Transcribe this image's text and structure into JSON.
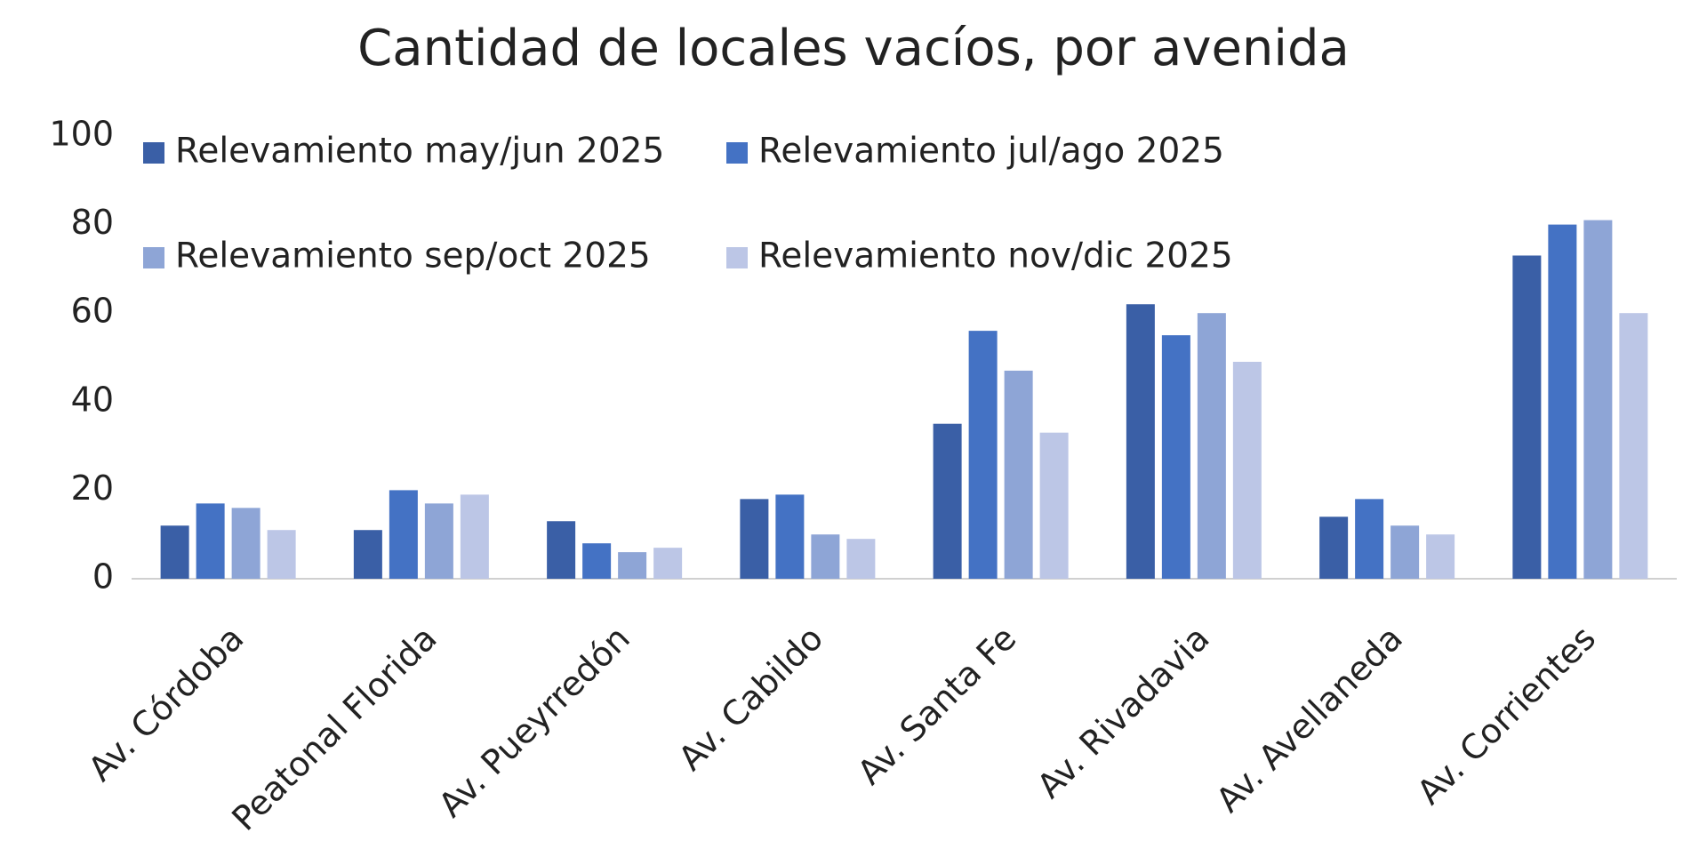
{
  "chart_data": {
    "type": "bar",
    "title": "Cantidad de locales vacíos, por avenida",
    "categories": [
      "Av. Córdoba",
      "Peatonal Florida",
      "Av. Pueyrredón",
      "Av. Cabildo",
      "Av. Santa Fe",
      "Av. Rivadavia",
      "Av. Avellaneda",
      "Av. Corrientes"
    ],
    "series": [
      {
        "name": "Relevamiento may/jun 2025",
        "color": "#3a5fa6",
        "values": [
          12,
          11,
          13,
          18,
          35,
          62,
          14,
          73
        ]
      },
      {
        "name": "Relevamiento jul/ago 2025",
        "color": "#4472c4",
        "values": [
          17,
          20,
          8,
          19,
          56,
          55,
          18,
          80
        ]
      },
      {
        "name": "Relevamiento sep/oct 2025",
        "color": "#8ea5d6",
        "values": [
          16,
          17,
          6,
          10,
          47,
          60,
          12,
          81
        ]
      },
      {
        "name": "Relevamiento nov/dic 2025",
        "color": "#bcc6e6",
        "values": [
          11,
          19,
          7,
          9,
          33,
          49,
          10,
          60
        ]
      }
    ],
    "ylim": [
      0,
      100
    ],
    "yticks": [
      0,
      20,
      40,
      60,
      80,
      100
    ],
    "grid": false
  }
}
